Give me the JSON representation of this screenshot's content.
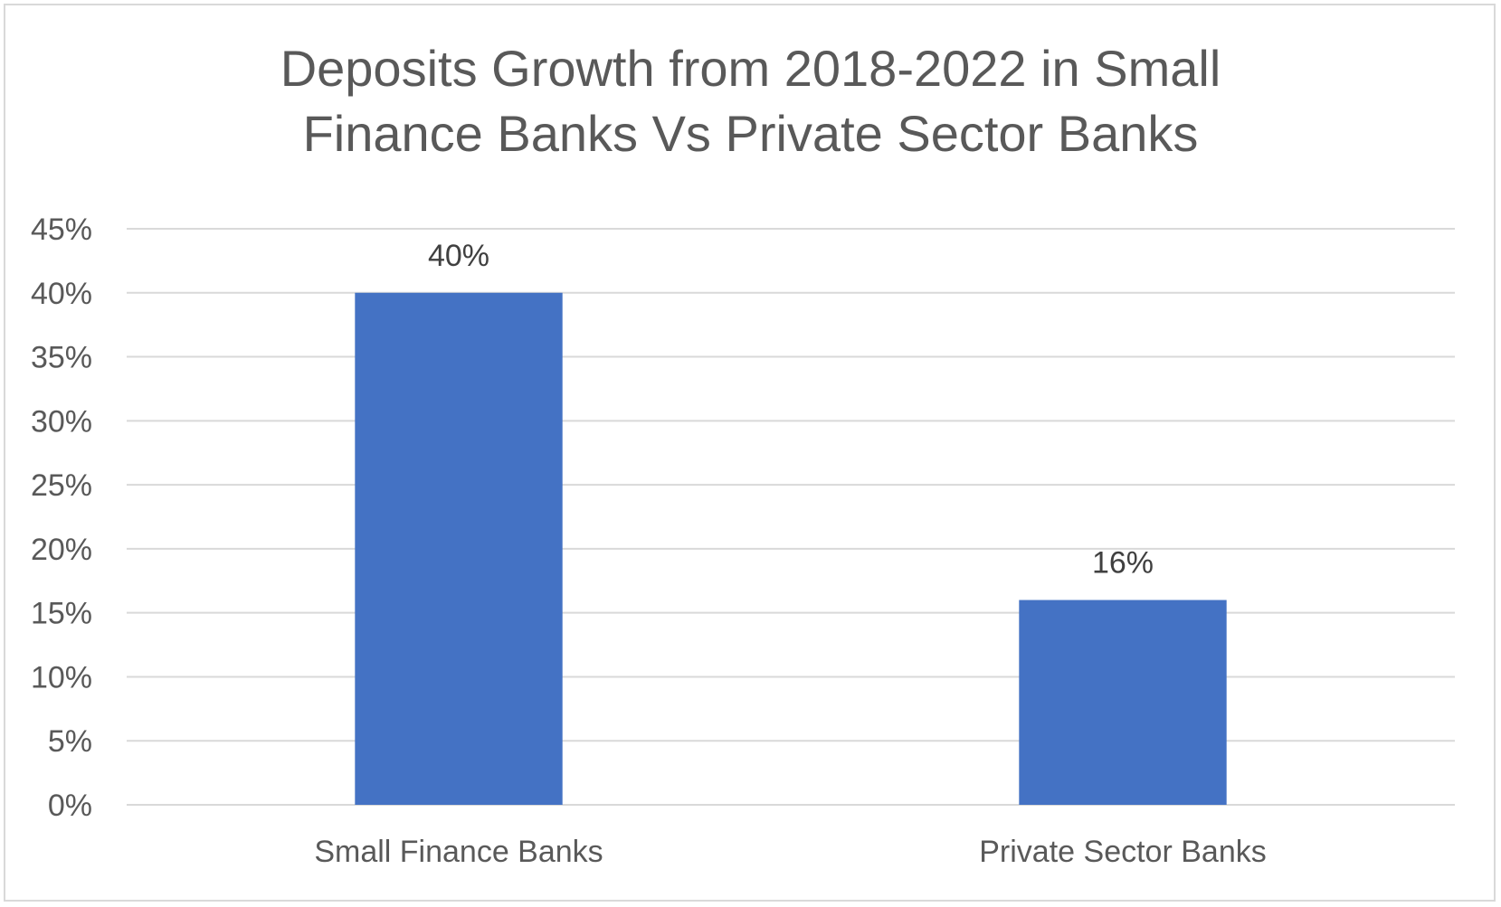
{
  "chart_data": {
    "type": "bar",
    "title_lines": [
      "Deposits Growth from 2018-2022 in Small",
      "Finance Banks Vs Private Sector Banks"
    ],
    "categories": [
      "Small Finance Banks",
      "Private Sector Banks"
    ],
    "values": [
      40,
      16
    ],
    "data_labels": [
      "40%",
      "16%"
    ],
    "y_ticks": [
      "0%",
      "5%",
      "10%",
      "15%",
      "20%",
      "25%",
      "30%",
      "35%",
      "40%",
      "45%"
    ],
    "ylim": [
      0,
      45
    ],
    "y_unit": "%",
    "grid": true,
    "legend": "none",
    "bar_color": "#4472c4"
  }
}
